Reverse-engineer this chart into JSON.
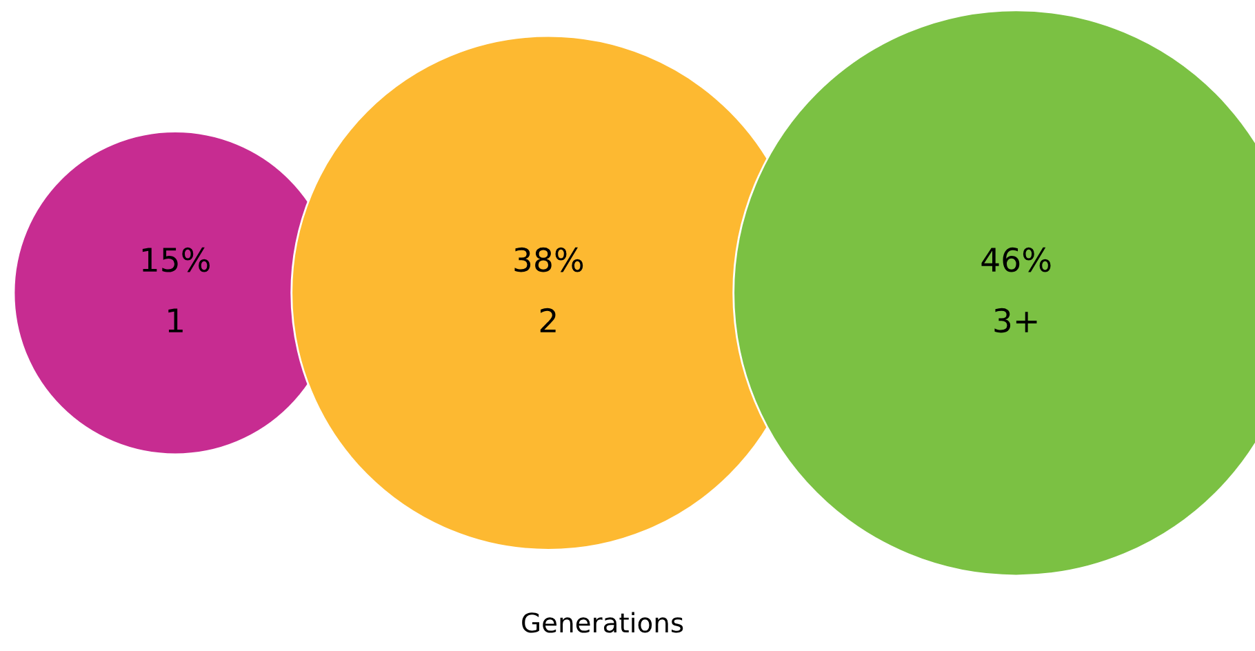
{
  "chart_data": {
    "type": "other",
    "xlabel": "Generations",
    "categories": [
      "1",
      "2",
      "3+"
    ],
    "values": [
      15,
      38,
      46
    ],
    "value_labels": [
      "15%",
      "38%",
      "46%"
    ],
    "colors": [
      "#c72c91",
      "#fdb931",
      "#7bc143"
    ]
  }
}
